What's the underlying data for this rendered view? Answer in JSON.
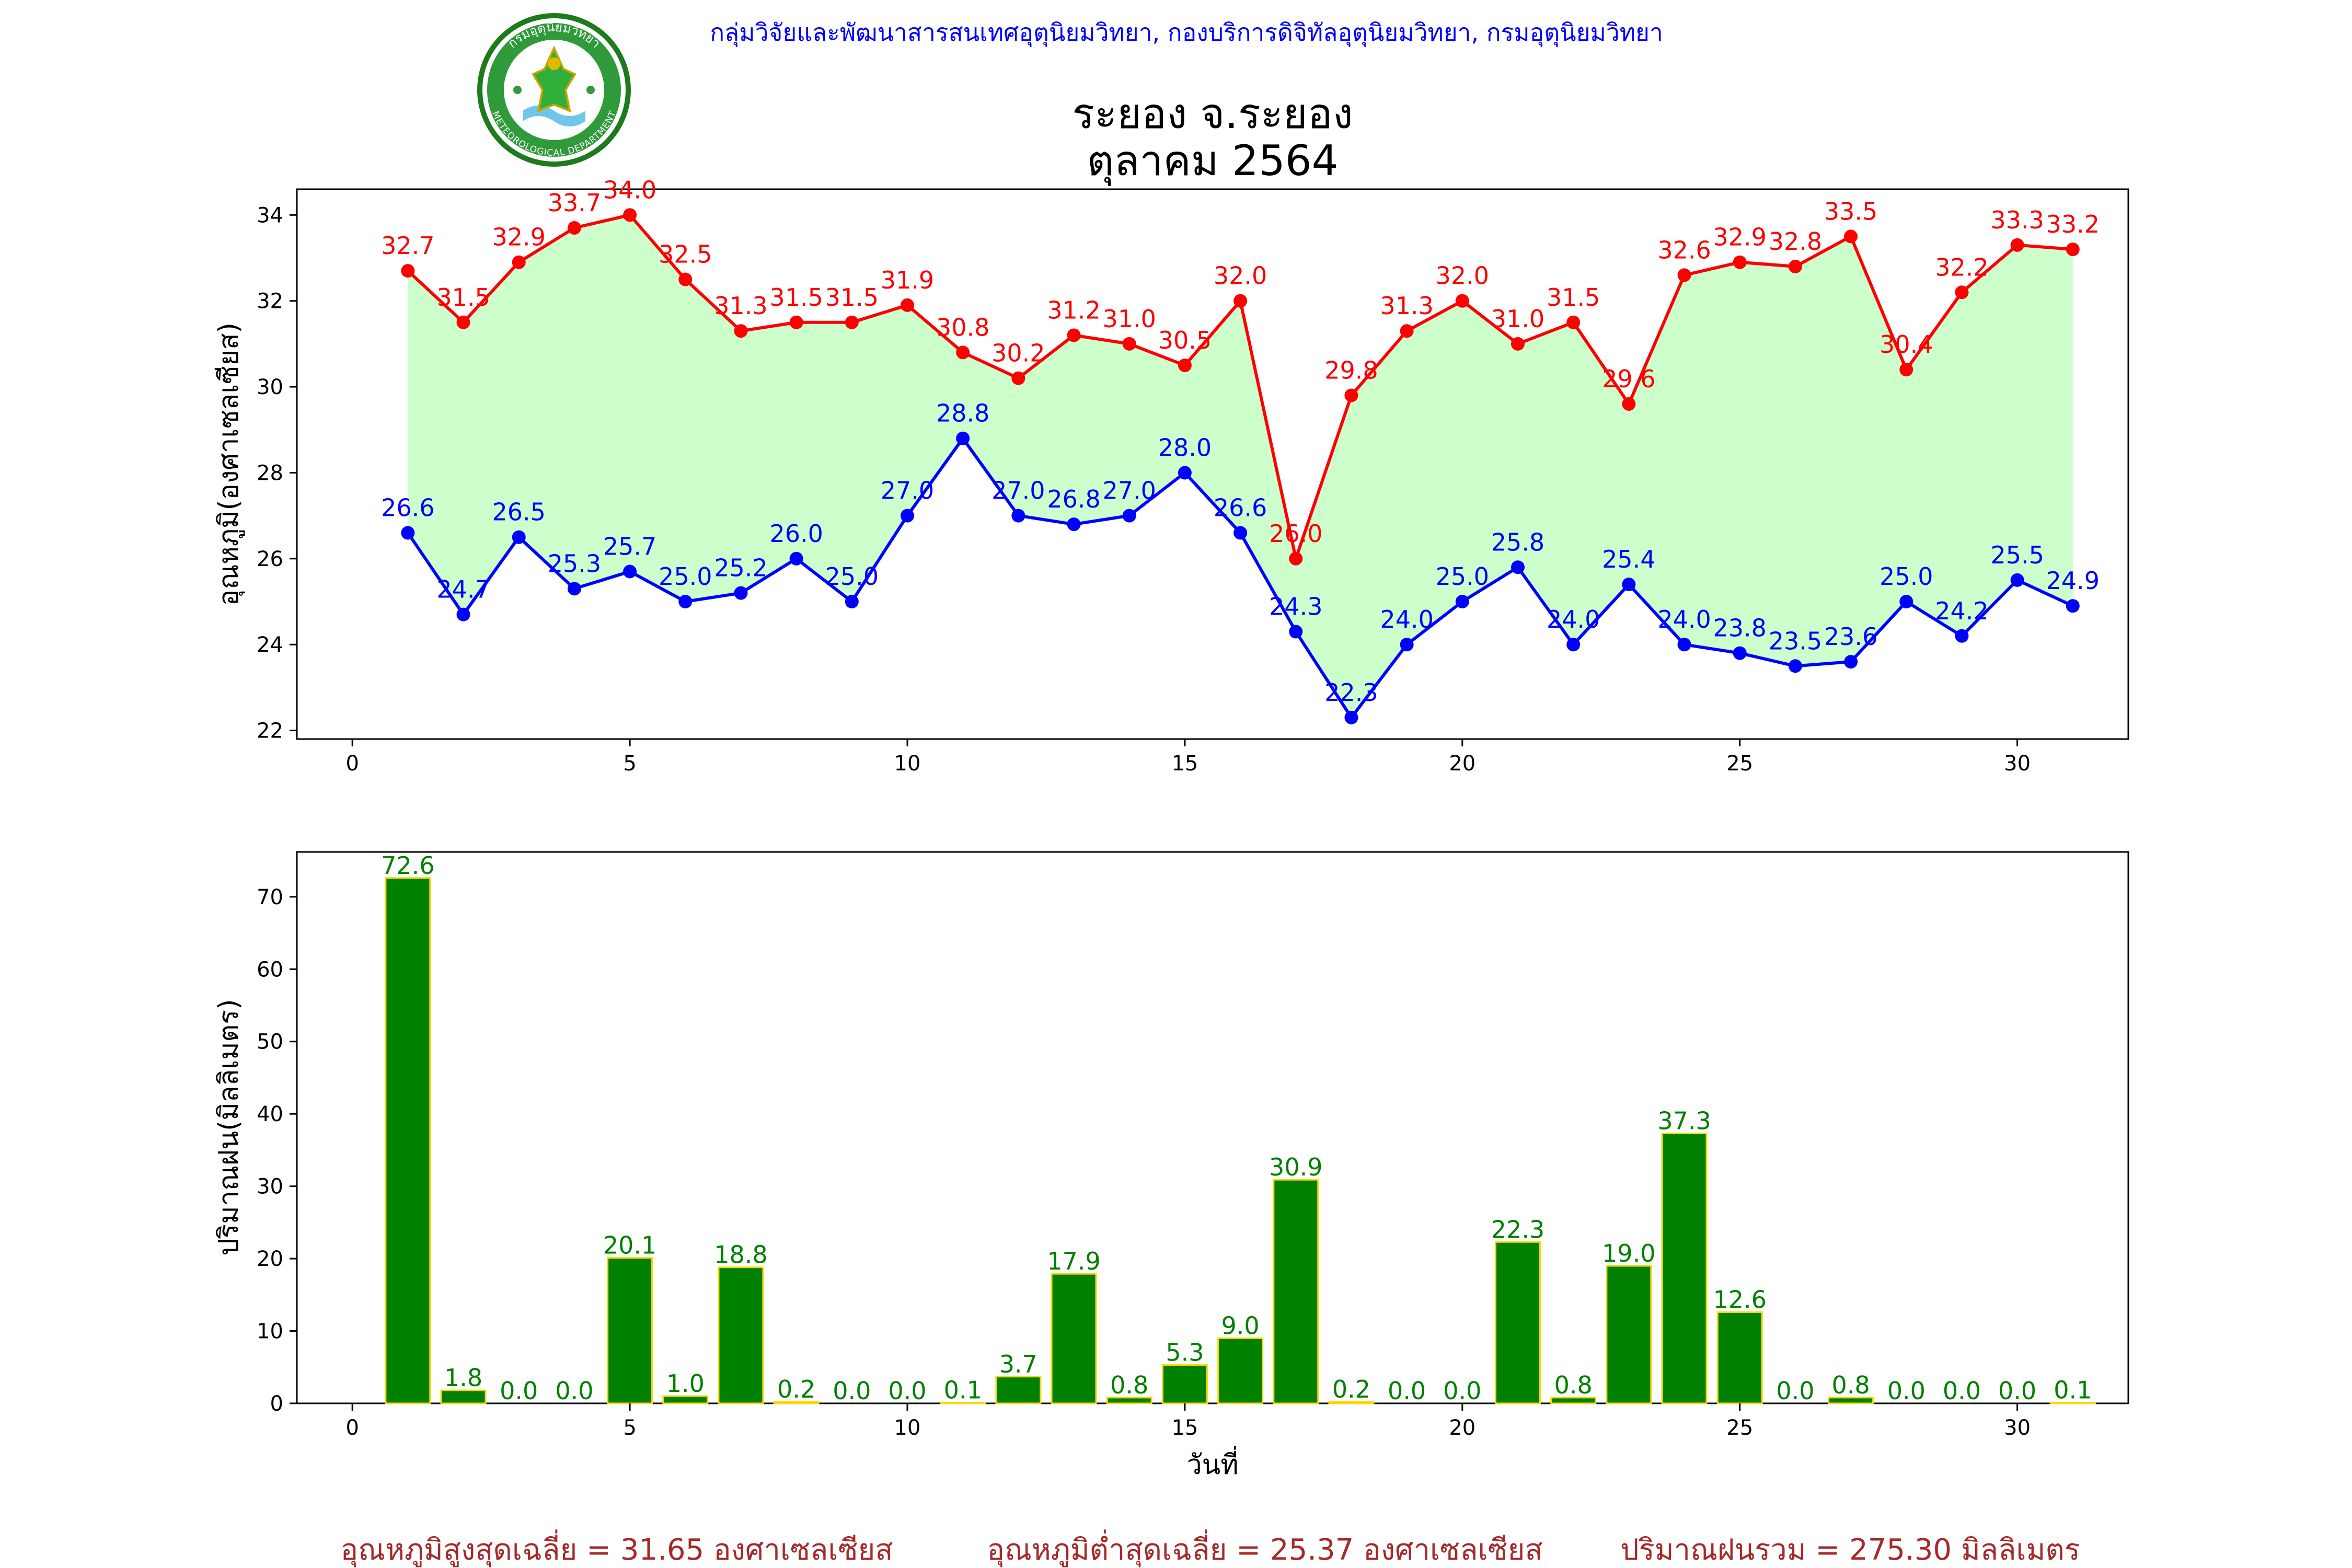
{
  "header": {
    "credit": "กลุ่มวิจัยและพัฒนาสารสนเทศอุตุนิยมวิทยา, กองบริการดิจิทัลอุตุนิยมวิทยา, กรมอุตุนิยมวิทยา",
    "title_line1": "ระยอง จ.ระยอง",
    "title_line2": "ตุลาคม 2564",
    "logo_text_top": "กรมอุตุนิยมวิทยา",
    "logo_text_bottom": "METEOROLOGICAL DEPARTMENT"
  },
  "summary": {
    "avg_max": "อุณหภูมิสูงสุดเฉลี่ย = 31.65 องศาเซลเซียส",
    "avg_min": "อุณหภูมิต่ำสุดเฉลี่ย = 25.37 องศาเซลเซียส",
    "total_rain": "ปริมาณฝนรวม = 275.30 มิลลิเมตร"
  },
  "colors": {
    "max_line": "#ff0000",
    "min_line": "#0000ff",
    "fill_between": "#ccffcc",
    "rain_bar": "#008000",
    "rain_bar_edge": "#ffd700",
    "summary_text": "#a52a2a",
    "credit_text": "#0000ff"
  },
  "chart_data": [
    {
      "type": "line",
      "ylabel": "อุณหภูมิ(องศาเซลเซียส)",
      "xlabel": "",
      "xlim": [
        -1,
        32
      ],
      "ylim": [
        21.8,
        34.6
      ],
      "xticks": [
        0,
        5,
        10,
        15,
        20,
        25,
        30
      ],
      "yticks": [
        22,
        24,
        26,
        28,
        30,
        32,
        34
      ],
      "grid": false,
      "fill_between": true,
      "x": [
        1,
        2,
        3,
        4,
        5,
        6,
        7,
        8,
        9,
        10,
        11,
        12,
        13,
        14,
        15,
        16,
        17,
        18,
        19,
        20,
        21,
        22,
        23,
        24,
        25,
        26,
        27,
        28,
        29,
        30,
        31
      ],
      "series": [
        {
          "values": [
            32.7,
            31.5,
            32.9,
            33.7,
            34.0,
            32.5,
            31.3,
            31.5,
            31.5,
            31.9,
            30.8,
            30.2,
            31.2,
            31.0,
            30.5,
            32.0,
            26.0,
            29.8,
            31.3,
            32.0,
            31.0,
            31.5,
            29.6,
            32.6,
            32.9,
            32.8,
            33.5,
            30.4,
            32.2,
            33.3,
            33.2
          ]
        },
        {
          "values": [
            26.6,
            24.7,
            26.5,
            25.3,
            25.7,
            25.0,
            25.2,
            26.0,
            25.0,
            27.0,
            28.8,
            27.0,
            26.8,
            27.0,
            28.0,
            26.6,
            24.3,
            22.3,
            24.0,
            25.0,
            25.8,
            24.0,
            25.4,
            24.0,
            23.8,
            23.5,
            23.6,
            25.0,
            24.2,
            25.5,
            24.9
          ]
        }
      ]
    },
    {
      "type": "bar",
      "ylabel": "ปริมาณฝน(มิลลิเมตร)",
      "xlabel": "วันที่",
      "xlim": [
        -1,
        32
      ],
      "ylim": [
        0,
        76.2
      ],
      "xticks": [
        0,
        5,
        10,
        15,
        20,
        25,
        30
      ],
      "yticks": [
        0,
        10,
        20,
        30,
        40,
        50,
        60,
        70
      ],
      "grid": false,
      "x": [
        1,
        2,
        3,
        4,
        5,
        6,
        7,
        8,
        9,
        10,
        11,
        12,
        13,
        14,
        15,
        16,
        17,
        18,
        19,
        20,
        21,
        22,
        23,
        24,
        25,
        26,
        27,
        28,
        29,
        30,
        31
      ],
      "values": [
        72.6,
        1.8,
        0.0,
        0.0,
        20.1,
        1.0,
        18.8,
        0.2,
        0.0,
        0.0,
        0.1,
        3.7,
        17.9,
        0.8,
        5.3,
        9.0,
        30.9,
        0.2,
        0.0,
        0.0,
        22.3,
        0.8,
        19.0,
        37.3,
        12.6,
        0.0,
        0.8,
        0.0,
        0.0,
        0.0,
        0.1
      ]
    }
  ]
}
